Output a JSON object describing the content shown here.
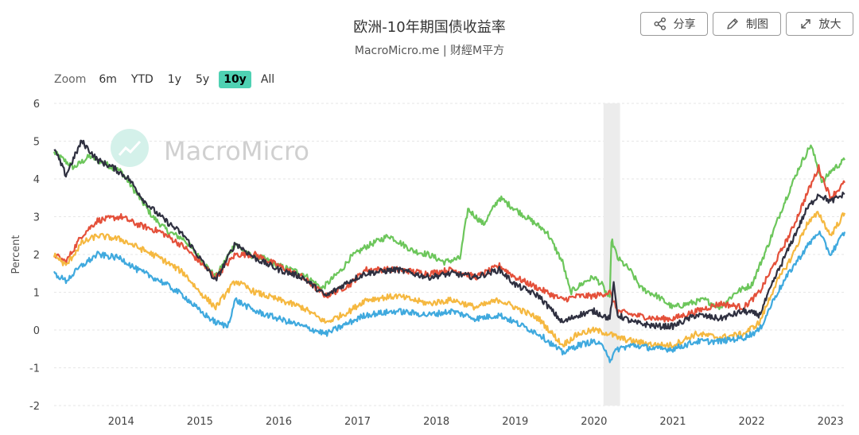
{
  "header": {
    "title": "欧洲-10年期国债收益率",
    "subtitle": "MacroMicro.me | 财經M平方"
  },
  "toolbar": {
    "share_label": "分享",
    "draw_label": "制图",
    "expand_label": "放大"
  },
  "zoom": {
    "label": "Zoom",
    "options": [
      "6m",
      "YTD",
      "1y",
      "5y",
      "10y",
      "All"
    ],
    "active": "10y"
  },
  "watermark": "MacroMicro",
  "colors": {
    "green": "#6cc65b",
    "red": "#e4503a",
    "black": "#2f3040",
    "yellow": "#f5b840",
    "blue": "#3fa9de",
    "zoom_active": "#4fd1b3",
    "recession_band": "#ececec"
  },
  "chart_data": {
    "type": "line",
    "title": "欧洲-10年期国债收益率",
    "xlabel": "",
    "ylabel": "Percent",
    "xlim": [
      2013.15,
      2023.18
    ],
    "ylim": [
      -2,
      6
    ],
    "yticks": [
      -2,
      -1,
      0,
      1,
      2,
      3,
      4,
      5,
      6
    ],
    "xticks": [
      2014,
      2015,
      2016,
      2017,
      2018,
      2019,
      2020,
      2021,
      2022,
      2023
    ],
    "shaded_band": [
      2020.12,
      2020.33
    ],
    "grid": true,
    "legend": "none",
    "series": [
      {
        "name": "green",
        "color": "#6cc65b",
        "x": [
          2013.15,
          2013.4,
          2013.6,
          2013.8,
          2014.0,
          2014.2,
          2014.4,
          2014.6,
          2014.8,
          2015.0,
          2015.2,
          2015.45,
          2015.6,
          2015.8,
          2016.0,
          2016.3,
          2016.55,
          2016.8,
          2016.9,
          2017.1,
          2017.4,
          2017.7,
          2017.9,
          2018.1,
          2018.3,
          2018.4,
          2018.6,
          2018.8,
          2019.0,
          2019.2,
          2019.4,
          2019.6,
          2019.7,
          2019.9,
          2020.0,
          2020.1,
          2020.2,
          2020.22,
          2020.3,
          2020.45,
          2020.6,
          2020.8,
          2021.0,
          2021.2,
          2021.4,
          2021.6,
          2021.8,
          2022.0,
          2022.2,
          2022.4,
          2022.6,
          2022.75,
          2022.9,
          2023.0,
          2023.18
        ],
        "values": [
          4.7,
          4.3,
          4.6,
          4.4,
          4.2,
          3.6,
          3.0,
          2.6,
          2.4,
          1.9,
          1.4,
          2.3,
          2.0,
          1.9,
          1.7,
          1.5,
          1.1,
          1.6,
          1.9,
          2.2,
          2.5,
          2.1,
          2.0,
          1.8,
          1.9,
          3.2,
          2.8,
          3.5,
          3.2,
          2.9,
          2.6,
          1.8,
          1.0,
          1.3,
          1.4,
          1.2,
          0.8,
          2.4,
          1.9,
          1.6,
          1.1,
          0.9,
          0.6,
          0.7,
          0.8,
          0.6,
          1.0,
          1.2,
          2.2,
          3.3,
          4.3,
          4.9,
          3.9,
          4.2,
          4.5
        ]
      },
      {
        "name": "red",
        "color": "#e4503a",
        "x": [
          2013.15,
          2013.3,
          2013.5,
          2013.7,
          2014.0,
          2014.2,
          2014.5,
          2014.8,
          2015.0,
          2015.2,
          2015.45,
          2015.7,
          2016.0,
          2016.3,
          2016.6,
          2016.9,
          2017.1,
          2017.5,
          2017.9,
          2018.2,
          2018.5,
          2018.8,
          2019.0,
          2019.3,
          2019.6,
          2019.8,
          2020.0,
          2020.2,
          2020.3,
          2020.5,
          2020.8,
          2021.0,
          2021.3,
          2021.6,
          2021.9,
          2022.1,
          2022.3,
          2022.5,
          2022.7,
          2022.85,
          2023.0,
          2023.18
        ],
        "values": [
          2.0,
          1.8,
          2.5,
          2.9,
          3.0,
          2.8,
          2.6,
          2.2,
          1.8,
          1.4,
          2.0,
          2.0,
          1.7,
          1.4,
          0.9,
          1.2,
          1.6,
          1.6,
          1.5,
          1.6,
          1.4,
          1.7,
          1.4,
          1.1,
          0.8,
          0.9,
          0.9,
          1.0,
          0.5,
          0.4,
          0.3,
          0.3,
          0.5,
          0.7,
          0.6,
          1.0,
          1.8,
          2.6,
          3.6,
          4.3,
          3.5,
          3.9
        ]
      },
      {
        "name": "black",
        "color": "#2f3040",
        "x": [
          2013.15,
          2013.3,
          2013.5,
          2013.7,
          2013.9,
          2014.1,
          2014.3,
          2014.5,
          2014.8,
          2015.0,
          2015.2,
          2015.45,
          2015.7,
          2016.0,
          2016.3,
          2016.6,
          2016.9,
          2017.1,
          2017.5,
          2017.9,
          2018.2,
          2018.5,
          2018.8,
          2019.0,
          2019.3,
          2019.6,
          2019.8,
          2020.0,
          2020.2,
          2020.25,
          2020.3,
          2020.5,
          2020.8,
          2021.0,
          2021.3,
          2021.6,
          2021.9,
          2022.1,
          2022.3,
          2022.5,
          2022.7,
          2022.85,
          2023.0,
          2023.18
        ],
        "values": [
          4.8,
          4.1,
          5.0,
          4.5,
          4.3,
          4.0,
          3.4,
          3.0,
          2.5,
          1.9,
          1.3,
          2.3,
          1.9,
          1.6,
          1.4,
          0.9,
          1.3,
          1.5,
          1.6,
          1.4,
          1.5,
          1.4,
          1.6,
          1.2,
          0.9,
          0.2,
          0.4,
          0.5,
          0.3,
          1.2,
          0.4,
          0.2,
          0.1,
          0.1,
          0.4,
          0.3,
          0.5,
          0.4,
          1.4,
          2.3,
          3.2,
          3.6,
          3.4,
          3.6
        ]
      },
      {
        "name": "yellow",
        "color": "#f5b840",
        "x": [
          2013.15,
          2013.3,
          2013.5,
          2013.7,
          2014.0,
          2014.2,
          2014.5,
          2014.8,
          2015.0,
          2015.2,
          2015.45,
          2015.7,
          2016.0,
          2016.3,
          2016.6,
          2016.9,
          2017.1,
          2017.5,
          2017.9,
          2018.2,
          2018.5,
          2018.8,
          2019.0,
          2019.3,
          2019.6,
          2019.8,
          2020.0,
          2020.2,
          2020.3,
          2020.5,
          2020.8,
          2021.0,
          2021.3,
          2021.6,
          2021.9,
          2022.1,
          2022.3,
          2022.5,
          2022.7,
          2022.85,
          2023.0,
          2023.18
        ],
        "values": [
          2.0,
          1.7,
          2.3,
          2.5,
          2.4,
          2.2,
          1.9,
          1.5,
          1.0,
          0.6,
          1.3,
          1.0,
          0.8,
          0.6,
          0.2,
          0.5,
          0.8,
          0.9,
          0.7,
          0.8,
          0.6,
          0.8,
          0.6,
          0.3,
          -0.4,
          -0.1,
          0.0,
          -0.1,
          -0.2,
          -0.3,
          -0.4,
          -0.4,
          -0.1,
          -0.2,
          -0.1,
          0.2,
          1.2,
          1.9,
          2.8,
          3.1,
          2.5,
          3.1
        ]
      },
      {
        "name": "blue",
        "color": "#3fa9de",
        "x": [
          2013.15,
          2013.3,
          2013.5,
          2013.7,
          2014.0,
          2014.2,
          2014.5,
          2014.8,
          2015.0,
          2015.2,
          2015.35,
          2015.45,
          2015.7,
          2016.0,
          2016.3,
          2016.6,
          2016.9,
          2017.1,
          2017.5,
          2017.9,
          2018.2,
          2018.5,
          2018.8,
          2019.0,
          2019.3,
          2019.6,
          2019.8,
          2020.0,
          2020.15,
          2020.2,
          2020.3,
          2020.5,
          2020.8,
          2021.0,
          2021.3,
          2021.6,
          2021.9,
          2022.1,
          2022.3,
          2022.5,
          2022.7,
          2022.85,
          2023.0,
          2023.18
        ],
        "values": [
          1.5,
          1.3,
          1.7,
          2.0,
          1.9,
          1.6,
          1.3,
          0.9,
          0.5,
          0.2,
          0.1,
          0.8,
          0.5,
          0.3,
          0.1,
          -0.1,
          0.2,
          0.4,
          0.5,
          0.4,
          0.5,
          0.3,
          0.4,
          0.2,
          -0.1,
          -0.6,
          -0.4,
          -0.3,
          -0.5,
          -0.8,
          -0.5,
          -0.4,
          -0.5,
          -0.5,
          -0.3,
          -0.3,
          -0.2,
          0.0,
          0.9,
          1.6,
          2.2,
          2.6,
          2.0,
          2.6
        ]
      }
    ]
  }
}
